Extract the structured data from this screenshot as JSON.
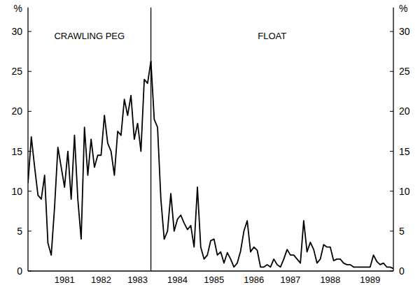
{
  "chart_data": {
    "type": "line",
    "y_label": "%",
    "categories": [
      null,
      null,
      null,
      null,
      null,
      null,
      null,
      null,
      null,
      null,
      null,
      "1981",
      null,
      null,
      null,
      null,
      null,
      null,
      null,
      null,
      null,
      null,
      "1982",
      null,
      null,
      null,
      null,
      null,
      null,
      null,
      null,
      null,
      null,
      "1983",
      null,
      null,
      null,
      null,
      null,
      null,
      null,
      null,
      null,
      null,
      null,
      "1984",
      null,
      null,
      null,
      null,
      null,
      null,
      null,
      null,
      null,
      null,
      "1985",
      null,
      null,
      null,
      null,
      null,
      null,
      null,
      null,
      null,
      null,
      null,
      "1986",
      null,
      null,
      null,
      null,
      null,
      null,
      null,
      null,
      null,
      null,
      "1987",
      null,
      null,
      null,
      null,
      null,
      null,
      null,
      null,
      null,
      null,
      null,
      "1988",
      null,
      null,
      null,
      null,
      null,
      null,
      null,
      null,
      null,
      null,
      null,
      "1989",
      null,
      null,
      null,
      null,
      null,
      null,
      null
    ],
    "series": [
      {
        "name": "CRAWLING PEG",
        "color": "#000000",
        "values": [
          11,
          16.8,
          13,
          9.5,
          9,
          12,
          3.5,
          2,
          8,
          15.5,
          13,
          10.5,
          15,
          9,
          17,
          9,
          4,
          18,
          12,
          16.5,
          13,
          14.5,
          14.5,
          19.5,
          16,
          15,
          12,
          17.5,
          17,
          21.5,
          19.5,
          22,
          16.5,
          18.5,
          15,
          24,
          23.5,
          26.3,
          null,
          null,
          null,
          null,
          null,
          null,
          null,
          null,
          null,
          null,
          null,
          null,
          null,
          null,
          null,
          null,
          null,
          null,
          null,
          null,
          null,
          null,
          null,
          null,
          null,
          null,
          null,
          null,
          null,
          null,
          null,
          null,
          null,
          null,
          null,
          null,
          null,
          null,
          null,
          null,
          null,
          null,
          null,
          null,
          null,
          null,
          null,
          null,
          null,
          null,
          null,
          null,
          null,
          null,
          null,
          null,
          null,
          null,
          null,
          null,
          null,
          null,
          null,
          null,
          null,
          null,
          null,
          null,
          null,
          null,
          null,
          null,
          null
        ]
      },
      {
        "name": "FLOAT",
        "color": "#000000",
        "values": [
          null,
          null,
          null,
          null,
          null,
          null,
          null,
          null,
          null,
          null,
          null,
          null,
          null,
          null,
          null,
          null,
          null,
          null,
          null,
          null,
          null,
          null,
          null,
          null,
          null,
          null,
          null,
          null,
          null,
          null,
          null,
          null,
          null,
          null,
          null,
          null,
          null,
          26.3,
          19,
          18,
          9,
          4,
          5,
          9.7,
          5,
          6.5,
          7,
          6,
          5.2,
          5.7,
          3,
          10.5,
          3,
          1.5,
          2,
          3.8,
          4,
          2,
          2.4,
          1,
          2.3,
          1.5,
          0.5,
          1,
          2.5,
          5,
          6.3,
          2.4,
          3,
          2.6,
          0.5,
          0.5,
          0.8,
          0.5,
          1.5,
          0.8,
          0.5,
          1.5,
          2.7,
          2,
          2,
          1.5,
          1,
          6.3,
          2.4,
          3.6,
          2.7,
          1,
          1.5,
          3.3,
          3,
          3,
          1.3,
          1.5,
          1.5,
          1,
          0.8,
          0.8,
          0.5,
          0.5,
          0.5,
          0.5,
          0.5,
          0.5,
          2,
          1.2,
          0.8,
          1,
          0.5,
          0.5,
          0.3
        ]
      }
    ],
    "ylim": [
      0,
      33
    ],
    "yticks": [
      0,
      5,
      10,
      15,
      20,
      25,
      30
    ],
    "grid": false
  }
}
